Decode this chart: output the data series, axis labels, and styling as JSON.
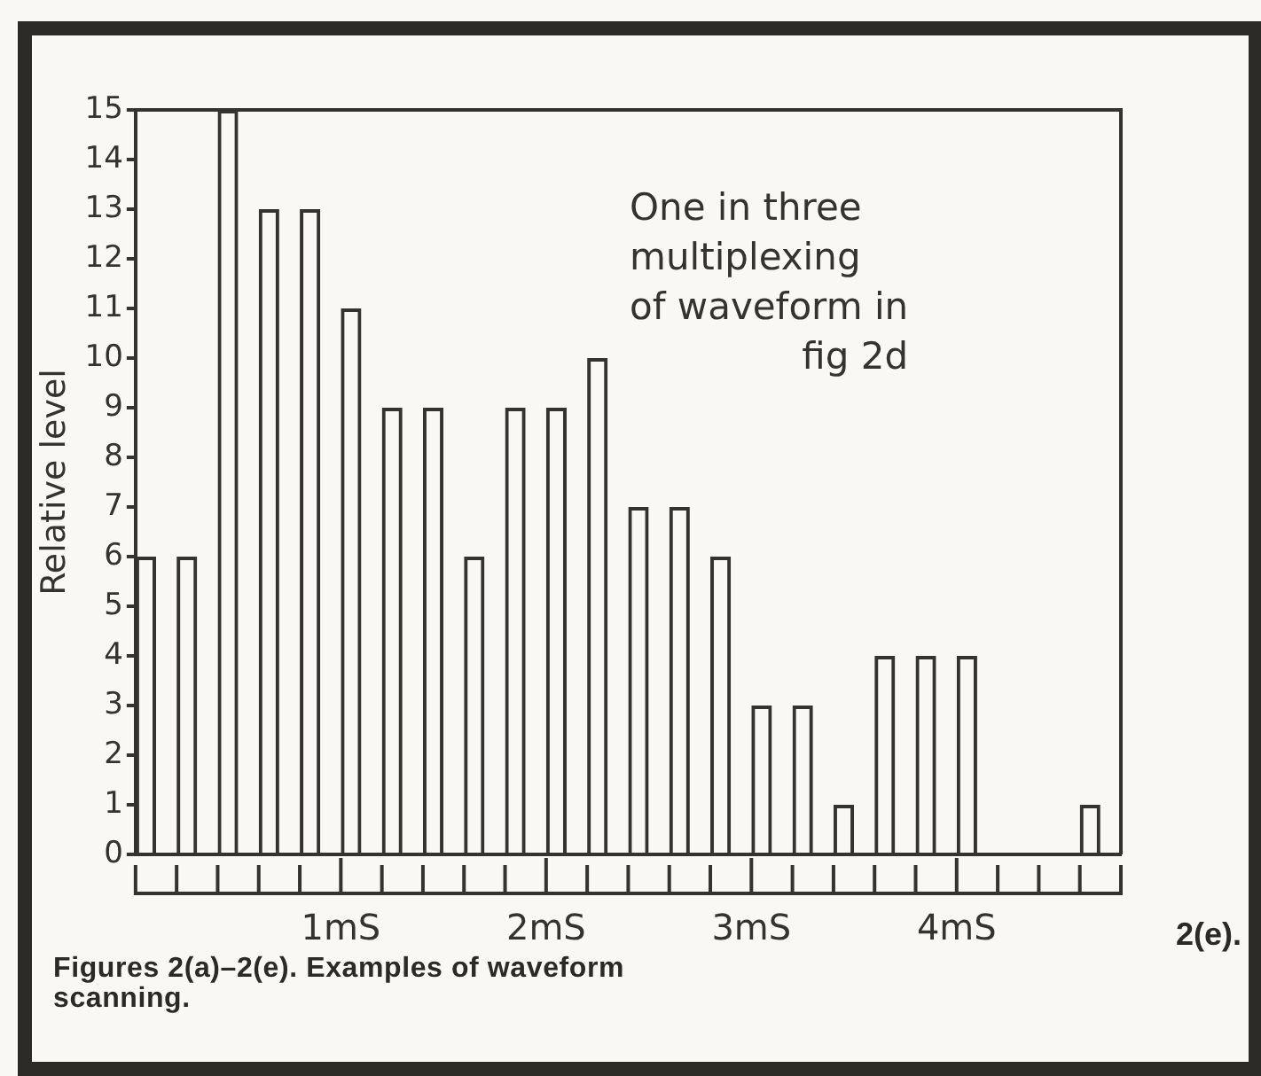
{
  "chart_data": {
    "type": "bar",
    "annotations": [
      "One in three\nmultiplexing\nof waveform in\nfig 2d",
      "2(e).",
      "Figures 2(a)–2(e). Examples of waveform\nscanning."
    ],
    "ylabel": "Relative level",
    "x": [
      0.05,
      0.25,
      0.45,
      0.65,
      0.85,
      1.05,
      1.25,
      1.45,
      1.65,
      1.85,
      2.05,
      2.25,
      2.45,
      2.65,
      2.85,
      3.05,
      3.25,
      3.45,
      3.65,
      3.85,
      4.05,
      4.65
    ],
    "values": [
      6,
      6,
      15,
      13,
      13,
      11,
      9,
      9,
      6,
      9,
      9,
      10,
      7,
      7,
      6,
      3,
      3,
      1,
      4,
      4,
      4,
      1
    ],
    "color": "#34342e",
    "xlim": [
      0,
      4.8
    ],
    "xticks": [
      {
        "value": 0,
        "label": null
      },
      {
        "value": 0.2,
        "label": null
      },
      {
        "value": 0.4,
        "label": null
      },
      {
        "value": 0.6,
        "label": null
      },
      {
        "value": 0.8,
        "label": null
      },
      {
        "value": 1,
        "label": "1mS"
      },
      {
        "value": 1.2,
        "label": null
      },
      {
        "value": 1.4,
        "label": null
      },
      {
        "value": 1.6,
        "label": null
      },
      {
        "value": 1.8,
        "label": null
      },
      {
        "value": 2,
        "label": "2mS"
      },
      {
        "value": 2.2,
        "label": null
      },
      {
        "value": 2.4,
        "label": null
      },
      {
        "value": 2.6,
        "label": null
      },
      {
        "value": 2.8,
        "label": null
      },
      {
        "value": 3,
        "label": "3mS"
      },
      {
        "value": 3.2,
        "label": null
      },
      {
        "value": 3.4,
        "label": null
      },
      {
        "value": 3.6,
        "label": null
      },
      {
        "value": 3.8,
        "label": null
      },
      {
        "value": 4,
        "label": "4mS"
      },
      {
        "value": 4.2,
        "label": null
      },
      {
        "value": 4.4,
        "label": null
      },
      {
        "value": 4.6,
        "label": null
      },
      {
        "value": 4.8,
        "label": null
      }
    ],
    "ylim": [
      0,
      15
    ],
    "yticks": [
      0,
      1,
      2,
      3,
      4,
      5,
      6,
      7,
      8,
      9,
      10,
      11,
      12,
      13,
      14,
      15
    ]
  }
}
